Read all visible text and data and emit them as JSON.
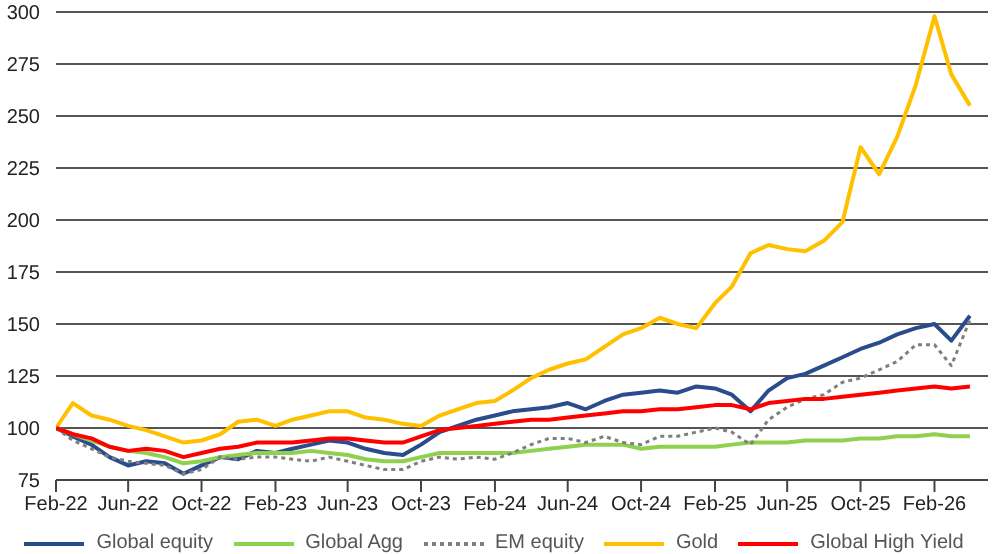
{
  "chart_data": {
    "type": "line",
    "x": [
      "2022-02",
      "2022-03",
      "2022-04",
      "2022-05",
      "2022-06",
      "2022-07",
      "2022-08",
      "2022-09",
      "2022-10",
      "2022-11",
      "2022-12",
      "2023-01",
      "2023-02",
      "2023-03",
      "2023-04",
      "2023-05",
      "2023-06",
      "2023-07",
      "2023-08",
      "2023-09",
      "2023-10",
      "2023-11",
      "2023-12",
      "2024-01",
      "2024-02",
      "2024-03",
      "2024-04",
      "2024-05",
      "2024-06",
      "2024-07",
      "2024-08",
      "2024-09",
      "2024-10",
      "2024-11",
      "2024-12",
      "2025-01",
      "2025-02",
      "2025-03",
      "2025-04",
      "2025-05",
      "2025-06",
      "2025-07",
      "2025-08",
      "2025-09",
      "2025-10",
      "2025-11",
      "2025-12",
      "2026-01",
      "2026-02",
      "2026-03",
      "2026-04"
    ],
    "series": [
      {
        "name": "Global equity",
        "color": "#2b4c8c",
        "values": [
          100,
          96,
          92,
          86,
          82,
          84,
          83,
          78,
          82,
          86,
          85,
          89,
          88,
          90,
          92,
          94,
          93,
          90,
          88,
          87,
          92,
          98,
          101,
          104,
          106,
          108,
          109,
          110,
          112,
          109,
          113,
          116,
          117,
          118,
          117,
          120,
          119,
          116,
          108,
          118,
          124,
          126,
          130,
          134,
          138,
          141,
          145,
          148,
          150,
          142,
          154
        ]
      },
      {
        "name": "Global Agg",
        "color": "#8fd14f",
        "values": [
          100,
          97,
          94,
          91,
          89,
          88,
          86,
          83,
          84,
          86,
          87,
          88,
          88,
          88,
          89,
          88,
          87,
          85,
          84,
          84,
          86,
          88,
          88,
          88,
          88,
          88,
          89,
          90,
          91,
          92,
          92,
          92,
          90,
          91,
          91,
          91,
          91,
          92,
          93,
          93,
          93,
          94,
          94,
          94,
          95,
          95,
          96,
          96,
          97,
          96,
          96
        ]
      },
      {
        "name": "EM equity",
        "color": "#7f7f7f",
        "line_style": "dotted",
        "values": [
          100,
          94,
          90,
          86,
          84,
          83,
          82,
          78,
          80,
          86,
          85,
          86,
          86,
          85,
          84,
          86,
          84,
          82,
          80,
          80,
          84,
          86,
          85,
          86,
          85,
          88,
          92,
          95,
          95,
          93,
          96,
          93,
          92,
          96,
          96,
          98,
          100,
          98,
          92,
          104,
          110,
          114,
          116,
          122,
          124,
          128,
          132,
          140,
          140,
          130,
          152
        ]
      },
      {
        "name": "Gold",
        "color": "#ffc000",
        "values": [
          100,
          112,
          106,
          104,
          101,
          99,
          96,
          93,
          94,
          97,
          103,
          104,
          101,
          104,
          106,
          108,
          108,
          105,
          104,
          102,
          101,
          106,
          109,
          112,
          113,
          118,
          124,
          128,
          131,
          133,
          139,
          145,
          148,
          153,
          150,
          148,
          160,
          168,
          184,
          188,
          186,
          185,
          190,
          199,
          235,
          222,
          240,
          265,
          298,
          270,
          255
        ]
      },
      {
        "name": "Global High Yield",
        "color": "#ff0000",
        "values": [
          100,
          97,
          95,
          91,
          89,
          90,
          89,
          86,
          88,
          90,
          91,
          93,
          93,
          93,
          94,
          95,
          95,
          94,
          93,
          93,
          96,
          99,
          100,
          101,
          102,
          103,
          104,
          104,
          105,
          106,
          107,
          108,
          108,
          109,
          109,
          110,
          111,
          111,
          109,
          112,
          113,
          114,
          114,
          115,
          116,
          117,
          118,
          119,
          120,
          119,
          120
        ]
      }
    ],
    "xlim": [
      "2022-02",
      "2026-05"
    ],
    "xticks": [
      {
        "value": "2022-02",
        "label": "Feb-22"
      },
      {
        "value": "2022-06",
        "label": "Jun-22"
      },
      {
        "value": "2022-10",
        "label": "Oct-22"
      },
      {
        "value": "2023-02",
        "label": "Feb-23"
      },
      {
        "value": "2023-06",
        "label": "Jun-23"
      },
      {
        "value": "2023-10",
        "label": "Oct-23"
      },
      {
        "value": "2024-02",
        "label": "Feb-24"
      },
      {
        "value": "2024-06",
        "label": "Jun-24"
      },
      {
        "value": "2024-10",
        "label": "Oct-24"
      },
      {
        "value": "2025-02",
        "label": "Feb-25"
      },
      {
        "value": "2025-06",
        "label": "Jun-25"
      },
      {
        "value": "2025-10",
        "label": "Oct-25"
      },
      {
        "value": "2026-02",
        "label": "Feb-26"
      }
    ],
    "ylim": [
      75,
      300
    ],
    "yticks": [
      75,
      100,
      125,
      150,
      175,
      200,
      225,
      250,
      275,
      300
    ],
    "grid": "y",
    "legend": "bottom",
    "marker": "none",
    "line_style": "solid"
  }
}
